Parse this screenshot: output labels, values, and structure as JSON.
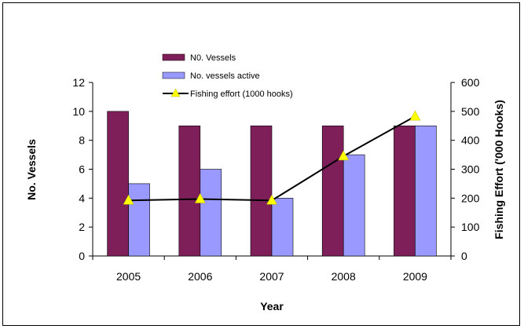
{
  "chart_data": {
    "type": "bar",
    "categories": [
      "2005",
      "2006",
      "2007",
      "2008",
      "2009"
    ],
    "series": [
      {
        "name": "N0. Vessels",
        "kind": "bar",
        "axis": "left",
        "color": "#7f1f5a",
        "values": [
          10,
          9,
          9,
          9,
          9
        ]
      },
      {
        "name": "No. vessels active",
        "kind": "bar",
        "axis": "left",
        "color": "#9999ff",
        "values": [
          5,
          6,
          4,
          7,
          9
        ]
      },
      {
        "name": "Fishing effort (1000 hooks)",
        "kind": "line",
        "axis": "right",
        "color": "#000000",
        "marker_color": "#ffff00",
        "marker": "triangle",
        "values": [
          192,
          197,
          192,
          345,
          483
        ]
      }
    ],
    "xlabel": "Year",
    "ylabel": "No. Vessels",
    "y2label": "Fishing Effort ('000 Hooks)",
    "ylim": [
      0,
      12
    ],
    "yticks": [
      "0",
      "2",
      "4",
      "6",
      "8",
      "10",
      "12"
    ],
    "y2lim": [
      0,
      600
    ],
    "y2ticks": [
      "0",
      "100",
      "200",
      "300",
      "400",
      "500",
      "600"
    ],
    "grid": false,
    "legend": "top-center"
  }
}
